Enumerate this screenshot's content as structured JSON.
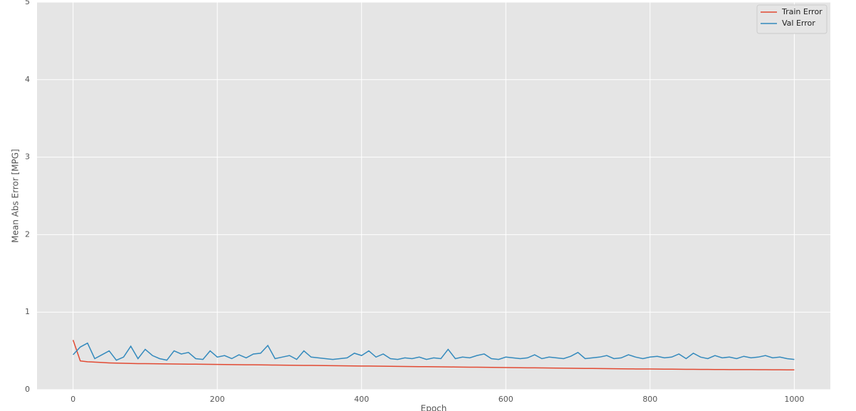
{
  "chart_data": {
    "type": "line",
    "xlabel": "Epoch",
    "ylabel": "Mean Abs Error [MPG]",
    "x": [
      0,
      10,
      20,
      30,
      40,
      50,
      60,
      70,
      80,
      90,
      100,
      110,
      120,
      130,
      140,
      150,
      160,
      170,
      180,
      190,
      200,
      210,
      220,
      230,
      240,
      250,
      260,
      270,
      280,
      290,
      300,
      310,
      320,
      330,
      340,
      350,
      360,
      370,
      380,
      390,
      400,
      410,
      420,
      430,
      440,
      450,
      460,
      470,
      480,
      490,
      500,
      510,
      520,
      530,
      540,
      550,
      560,
      570,
      580,
      590,
      600,
      610,
      620,
      630,
      640,
      650,
      660,
      670,
      680,
      690,
      700,
      710,
      720,
      730,
      740,
      750,
      760,
      770,
      780,
      790,
      800,
      810,
      820,
      830,
      840,
      850,
      860,
      870,
      880,
      890,
      900,
      910,
      920,
      930,
      940,
      950,
      960,
      970,
      980,
      990,
      1000
    ],
    "series": [
      {
        "name": "Train Error",
        "color": "#E24A33",
        "values": [
          0.64,
          0.37,
          0.36,
          0.355,
          0.35,
          0.345,
          0.342,
          0.34,
          0.338,
          0.336,
          0.335,
          0.334,
          0.333,
          0.332,
          0.331,
          0.33,
          0.329,
          0.328,
          0.327,
          0.326,
          0.325,
          0.324,
          0.323,
          0.322,
          0.321,
          0.32,
          0.319,
          0.318,
          0.317,
          0.316,
          0.315,
          0.314,
          0.313,
          0.312,
          0.311,
          0.31,
          0.309,
          0.308,
          0.307,
          0.306,
          0.305,
          0.304,
          0.303,
          0.302,
          0.301,
          0.3,
          0.299,
          0.298,
          0.297,
          0.296,
          0.295,
          0.294,
          0.293,
          0.292,
          0.291,
          0.29,
          0.289,
          0.288,
          0.287,
          0.286,
          0.285,
          0.284,
          0.283,
          0.282,
          0.281,
          0.28,
          0.279,
          0.278,
          0.277,
          0.276,
          0.275,
          0.274,
          0.273,
          0.272,
          0.271,
          0.27,
          0.269,
          0.268,
          0.267,
          0.266,
          0.266,
          0.265,
          0.264,
          0.264,
          0.263,
          0.262,
          0.262,
          0.261,
          0.261,
          0.26,
          0.26,
          0.259,
          0.259,
          0.258,
          0.258,
          0.257,
          0.257,
          0.256,
          0.256,
          0.255,
          0.255
        ]
      },
      {
        "name": "Val Error",
        "color": "#348ABD",
        "values": [
          0.45,
          0.55,
          0.6,
          0.4,
          0.45,
          0.5,
          0.38,
          0.42,
          0.56,
          0.4,
          0.52,
          0.44,
          0.4,
          0.38,
          0.5,
          0.46,
          0.48,
          0.4,
          0.39,
          0.5,
          0.42,
          0.44,
          0.4,
          0.45,
          0.41,
          0.46,
          0.47,
          0.57,
          0.4,
          0.42,
          0.44,
          0.39,
          0.5,
          0.42,
          0.41,
          0.4,
          0.39,
          0.4,
          0.41,
          0.47,
          0.44,
          0.5,
          0.42,
          0.46,
          0.4,
          0.39,
          0.41,
          0.4,
          0.42,
          0.39,
          0.41,
          0.4,
          0.52,
          0.4,
          0.42,
          0.41,
          0.44,
          0.46,
          0.4,
          0.39,
          0.42,
          0.41,
          0.4,
          0.41,
          0.45,
          0.4,
          0.42,
          0.41,
          0.4,
          0.43,
          0.48,
          0.4,
          0.41,
          0.42,
          0.44,
          0.4,
          0.41,
          0.45,
          0.42,
          0.4,
          0.42,
          0.43,
          0.41,
          0.42,
          0.46,
          0.4,
          0.47,
          0.42,
          0.4,
          0.44,
          0.41,
          0.42,
          0.4,
          0.43,
          0.41,
          0.42,
          0.44,
          0.41,
          0.42,
          0.4,
          0.39
        ]
      }
    ],
    "xlim": [
      -50,
      1050
    ],
    "ylim": [
      0,
      5
    ],
    "xticks": [
      0,
      200,
      400,
      600,
      800,
      1000
    ],
    "yticks": [
      0,
      1,
      2,
      3,
      4,
      5
    ],
    "grid": true,
    "legend": "upper right"
  }
}
